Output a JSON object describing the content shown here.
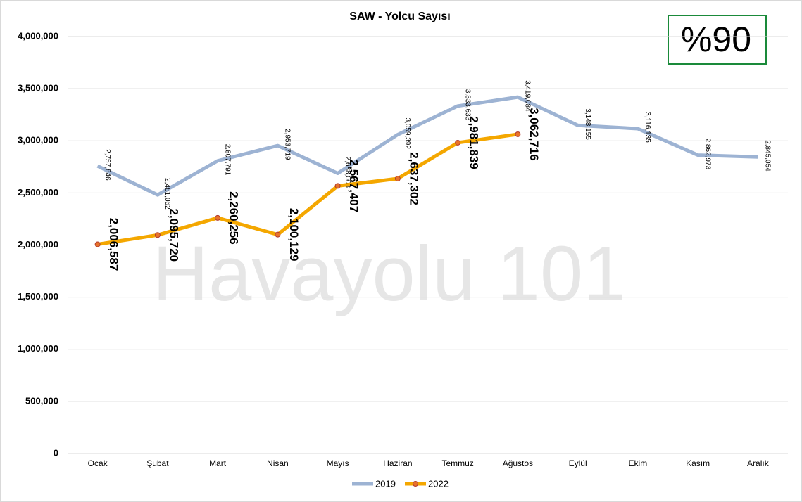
{
  "chart_data": {
    "type": "line",
    "title": "SAW - Yolcu Sayısı",
    "annotation": "%90",
    "watermark": "Havayolu 101",
    "categories": [
      "Ocak",
      "Şubat",
      "Mart",
      "Nisan",
      "Mayıs",
      "Haziran",
      "Temmuz",
      "Ağustos",
      "Eylül",
      "Ekim",
      "Kasım",
      "Aralık"
    ],
    "series": [
      {
        "name": "2019",
        "color": "#9db3d3",
        "values": [
          2757846,
          2481062,
          2807791,
          2953719,
          2688008,
          3059392,
          3333633,
          3419084,
          3148155,
          3116135,
          2862973,
          2845054
        ],
        "value_labels": [
          "2,757,846",
          "2,481,062",
          "2,807,791",
          "2,953,719",
          "2,688,008",
          "3,059,392",
          "3,333,633",
          "3,419,084",
          "3,148,155",
          "3,116,135",
          "2,862,973",
          "2,845,054"
        ]
      },
      {
        "name": "2022",
        "color": "#f4a700",
        "values": [
          2006587,
          2095720,
          2260256,
          2100129,
          2567407,
          2637302,
          2981839,
          3062716,
          null,
          null,
          null,
          null
        ],
        "value_labels": [
          "2,006,587",
          "2,095,720",
          "2,260,256",
          "2,100,129",
          "2,567,407",
          "2,637,302",
          "2,981,839",
          "3,062,716",
          null,
          null,
          null,
          null
        ]
      }
    ],
    "ylim": [
      0,
      4000000
    ],
    "yticks": [
      0,
      {
        "value": 500000,
        "label": "500,000"
      },
      {
        "value": 1000000,
        "label": "1,000,000"
      },
      {
        "value": 1500000,
        "label": "1,500,000"
      },
      {
        "value": 2000000,
        "label": "2,000,000"
      },
      {
        "value": 2500000,
        "label": "2,500,000"
      },
      {
        "value": 3000000,
        "label": "3,000,000"
      },
      {
        "value": 3500000,
        "label": "3,500,000"
      },
      {
        "value": 4000000,
        "label": "4,000,000"
      }
    ],
    "grid": true,
    "legend": "bottom"
  }
}
